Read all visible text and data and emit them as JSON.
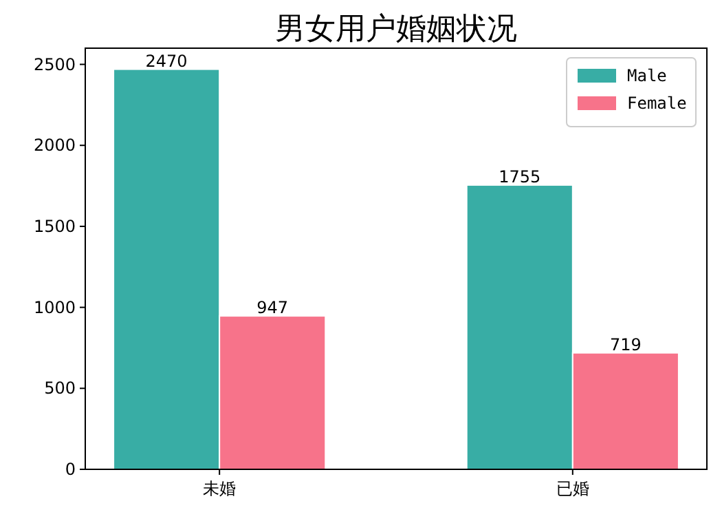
{
  "chart_data": {
    "type": "bar",
    "title": "男女用户婚姻状况",
    "categories": [
      "未婚",
      "已婚"
    ],
    "series": [
      {
        "name": "Male",
        "color": "#38ada5",
        "values": [
          2470,
          1755
        ]
      },
      {
        "name": "Female",
        "color": "#f7738a",
        "values": [
          947,
          719
        ]
      }
    ],
    "ylim": [
      0,
      2600
    ],
    "yticks": [
      0,
      500,
      1000,
      1500,
      2000,
      2500
    ],
    "data_labels": true,
    "legend": "top right",
    "grid": false
  }
}
